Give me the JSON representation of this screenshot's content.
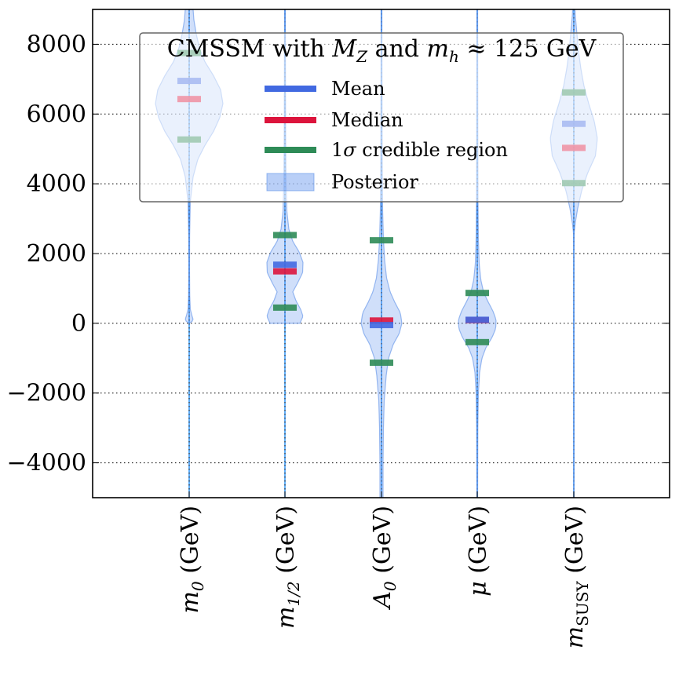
{
  "chart_data": {
    "type": "violin",
    "title": "",
    "xlabel": "",
    "ylabel": "",
    "ylim": [
      -5000,
      9000
    ],
    "yticks": [
      -4000,
      -2000,
      0,
      2000,
      4000,
      6000,
      8000
    ],
    "ytick_labels": [
      "−4000",
      "−2000",
      "0",
      "2000",
      "4000",
      "6000",
      "8000"
    ],
    "grid": true,
    "categories": [
      "m₀ (GeV)",
      "m₁/₂ (GeV)",
      "A₀ (GeV)",
      "μ (GeV)",
      "m_SUSY (GeV)"
    ],
    "series": [
      {
        "name": "m0",
        "label_main": "m",
        "label_sub": "0",
        "label_rest": " (GeV)",
        "mean": 6950,
        "median": 6430,
        "ci_low": 5270,
        "ci_high": 7750,
        "dist_range": [
          0,
          9000
        ],
        "profile": [
          [
            0,
            0.0
          ],
          [
            60,
            0.08
          ],
          [
            120,
            0.1
          ],
          [
            220,
            0.07
          ],
          [
            400,
            0.03
          ],
          [
            800,
            0.015
          ],
          [
            1500,
            0.01
          ],
          [
            2500,
            0.012
          ],
          [
            3500,
            0.03
          ],
          [
            4200,
            0.1
          ],
          [
            4700,
            0.22
          ],
          [
            5100,
            0.4
          ],
          [
            5500,
            0.62
          ],
          [
            5900,
            0.78
          ],
          [
            6300,
            0.86
          ],
          [
            6700,
            0.8
          ],
          [
            7100,
            0.62
          ],
          [
            7500,
            0.4
          ],
          [
            7900,
            0.26
          ],
          [
            8300,
            0.18
          ],
          [
            8700,
            0.12
          ],
          [
            9000,
            0.1
          ]
        ]
      },
      {
        "name": "m1/2",
        "label_main": "m",
        "label_sub": "1/2",
        "label_rest": " (GeV)",
        "mean": 1680,
        "median": 1490,
        "ci_low": 450,
        "ci_high": 2530,
        "dist_range": [
          0,
          9000
        ],
        "profile": [
          [
            0,
            0.38
          ],
          [
            200,
            0.46
          ],
          [
            400,
            0.4
          ],
          [
            650,
            0.28
          ],
          [
            900,
            0.2
          ],
          [
            1150,
            0.32
          ],
          [
            1450,
            0.45
          ],
          [
            1750,
            0.46
          ],
          [
            2050,
            0.36
          ],
          [
            2350,
            0.2
          ],
          [
            2700,
            0.1
          ],
          [
            3200,
            0.05
          ],
          [
            4000,
            0.03
          ],
          [
            5500,
            0.02
          ],
          [
            7000,
            0.015
          ],
          [
            9000,
            0.01
          ]
        ]
      },
      {
        "name": "A0",
        "label_main": "A",
        "label_sub": "0",
        "label_rest": " (GeV)",
        "mean": -50,
        "median": 80,
        "ci_low": -1130,
        "ci_high": 2380,
        "dist_range": [
          -5000,
          9000
        ],
        "profile": [
          [
            -5000,
            0.04
          ],
          [
            -4000,
            0.04
          ],
          [
            -3000,
            0.05
          ],
          [
            -2200,
            0.07
          ],
          [
            -1500,
            0.12
          ],
          [
            -1000,
            0.18
          ],
          [
            -600,
            0.3
          ],
          [
            -300,
            0.45
          ],
          [
            0,
            0.52
          ],
          [
            300,
            0.48
          ],
          [
            600,
            0.34
          ],
          [
            900,
            0.22
          ],
          [
            1300,
            0.13
          ],
          [
            1800,
            0.08
          ],
          [
            2400,
            0.05
          ],
          [
            3200,
            0.03
          ],
          [
            4500,
            0.02
          ],
          [
            6000,
            0.015
          ],
          [
            9000,
            0.01
          ]
        ]
      },
      {
        "name": "mu",
        "label_main": "μ",
        "label_sub": "",
        "label_rest": " (GeV)",
        "mean": 100,
        "median": 90,
        "ci_low": -540,
        "ci_high": 870,
        "dist_range": [
          -5000,
          9000
        ],
        "profile": [
          [
            -5000,
            0.01
          ],
          [
            -3000,
            0.015
          ],
          [
            -2000,
            0.03
          ],
          [
            -1400,
            0.06
          ],
          [
            -1000,
            0.12
          ],
          [
            -700,
            0.22
          ],
          [
            -400,
            0.38
          ],
          [
            -150,
            0.47
          ],
          [
            100,
            0.48
          ],
          [
            350,
            0.4
          ],
          [
            650,
            0.26
          ],
          [
            900,
            0.16
          ],
          [
            1250,
            0.09
          ],
          [
            1700,
            0.05
          ],
          [
            2400,
            0.03
          ],
          [
            3500,
            0.02
          ],
          [
            5500,
            0.015
          ],
          [
            9000,
            0.01
          ]
        ]
      },
      {
        "name": "mSUSY",
        "label_main": "m",
        "label_sub": "SUSY",
        "label_rest": " (GeV)",
        "mean": 5720,
        "median": 5030,
        "ci_low": 4020,
        "ci_high": 6620,
        "dist_range": [
          -5000,
          9000
        ],
        "profile": [
          [
            -5000,
            0.005
          ],
          [
            2000,
            0.005
          ],
          [
            2600,
            0.01
          ],
          [
            2900,
            0.04
          ],
          [
            3300,
            0.1
          ],
          [
            3800,
            0.2
          ],
          [
            4300,
            0.35
          ],
          [
            4800,
            0.55
          ],
          [
            5300,
            0.6
          ],
          [
            5800,
            0.52
          ],
          [
            6300,
            0.38
          ],
          [
            6800,
            0.26
          ],
          [
            7300,
            0.18
          ],
          [
            7800,
            0.12
          ],
          [
            8300,
            0.08
          ],
          [
            8800,
            0.04
          ],
          [
            9000,
            0.03
          ]
        ]
      }
    ],
    "legend": {
      "title": "CMSSM with M",
      "title_sub": "Z",
      "title_mid": " and m",
      "title_sub2": "h",
      "title_end": " ≈ 125 GeV",
      "location": "upper center",
      "entries": [
        {
          "label": "Mean",
          "color": "#4169e1"
        },
        {
          "label": "Median",
          "color": "#dc143c"
        },
        {
          "label": "1σ credible region",
          "color": "#2e8b57"
        },
        {
          "label": "Posterior",
          "color": "#6495ed"
        }
      ]
    },
    "colors": {
      "mean": "#4169e1",
      "median": "#dc143c",
      "ci": "#2e8b57",
      "violin_fill": "#6495ed",
      "violin_edge": "#5b8fe8",
      "axis_line": "#1e90ff"
    }
  }
}
